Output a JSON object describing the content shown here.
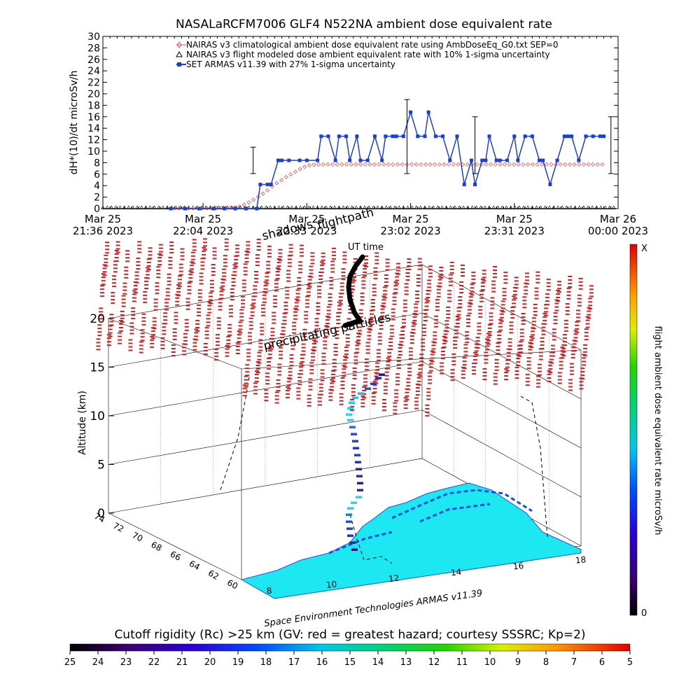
{
  "title": "NASALaRCFM7006  GLF4 N522NA ambient dose equivalent rate",
  "chart_data": [
    {
      "type": "line",
      "ylabel": "dH*(10)/dt microSv/h",
      "ylim": [
        0,
        30
      ],
      "yticks": [
        "0",
        "2",
        "4",
        "6",
        "8",
        "10",
        "12",
        "14",
        "16",
        "18",
        "20",
        "22",
        "24",
        "26",
        "28",
        "30"
      ],
      "xlim_minutes": [
        0,
        144
      ],
      "x_tick_labels": [
        {
          "l1": "Mar 25",
          "l2": "21:36 2023"
        },
        {
          "l1": "Mar 25",
          "l2": "22:04 2023"
        },
        {
          "l1": "Mar 25",
          "l2": "22:33 2023"
        },
        {
          "l1": "Mar 25",
          "l2": "23:02 2023"
        },
        {
          "l1": "Mar 25",
          "l2": "23:31 2023"
        },
        {
          "l1": "Mar 26",
          "l2": "00:00 2023"
        }
      ],
      "legend": [
        "NAIRAS v3 climatological ambient dose equivalent rate using AmbDoseEq_G0.txt SEP=0",
        "NAIRAS v3 flight modeled dose ambient equivalent rate with 10% 1-sigma uncertainty",
        "SET ARMAS v11.39 with 27% 1-sigma uncertainty"
      ],
      "legend_placement": "top",
      "series": [
        {
          "name": "NAIRAS v3 climatological ambient dose equivalent rate using AmbDoseEq_G0.txt SEP=0",
          "marker": "diamond",
          "color": "#e05050",
          "x": [
            20,
            25,
            30,
            35,
            38,
            40,
            42,
            44,
            46,
            48,
            50,
            52,
            54,
            56,
            58,
            60,
            140
          ],
          "y": [
            0.05,
            0.05,
            0.05,
            0.1,
            0.3,
            0.8,
            1.5,
            2.3,
            3.2,
            4.2,
            5.0,
            5.8,
            6.5,
            7.2,
            7.6,
            7.7,
            7.7
          ]
        },
        {
          "name": "NAIRAS v3 flight modeled dose ambient equivalent rate with 10% 1-sigma uncertainty",
          "marker": "triangle",
          "color": "#000000",
          "x": [
            0,
            144
          ],
          "y": [
            0.1,
            0.1
          ]
        },
        {
          "name": "SET ARMAS v11.39 with 27% 1-sigma uncertainty",
          "marker": "square",
          "color": "#1a3fd6",
          "x": [
            19,
            23,
            27,
            31,
            34,
            37,
            40,
            43,
            44,
            46,
            47,
            49,
            50,
            52,
            55,
            57,
            60,
            61,
            63,
            65,
            66,
            68,
            69,
            71,
            72,
            74,
            76,
            78,
            79,
            81,
            82,
            84,
            86,
            88,
            90,
            91,
            93,
            95,
            97,
            99,
            101,
            103,
            104,
            106,
            107,
            108,
            110,
            111,
            113,
            115,
            116,
            118,
            120,
            122,
            123,
            125,
            127,
            129,
            130,
            131,
            133,
            135,
            137,
            139,
            140
          ],
          "y": [
            0,
            0,
            0,
            0,
            0,
            0,
            0,
            0,
            4.2,
            4.2,
            4.2,
            8.4,
            8.4,
            8.4,
            8.4,
            8.4,
            8.4,
            12.6,
            12.6,
            8.4,
            12.6,
            12.6,
            8.4,
            12.6,
            8.4,
            8.4,
            12.6,
            8.4,
            12.6,
            12.6,
            12.6,
            12.6,
            16.8,
            12.6,
            12.6,
            16.8,
            12.6,
            12.6,
            8.4,
            12.6,
            4.2,
            8.4,
            4.2,
            8.4,
            8.4,
            12.6,
            8.4,
            8.4,
            8.4,
            12.6,
            8.4,
            12.6,
            12.6,
            8.4,
            8.4,
            4.2,
            8.4,
            12.6,
            12.6,
            12.6,
            8.4,
            12.6,
            12.6,
            12.6,
            12.6
          ]
        }
      ],
      "error_bars": [
        {
          "x": 42,
          "lo": 6.1,
          "hi": 10.7
        },
        {
          "x": 85,
          "lo": 6.1,
          "hi": 19.0
        },
        {
          "x": 104,
          "lo": 6.1,
          "hi": 16.0
        },
        {
          "x": 142,
          "lo": 6.1,
          "hi": 16.0
        }
      ]
    },
    {
      "type": "scatter",
      "zlabel": "Altitude (km)",
      "zlim": [
        0,
        20
      ],
      "zticks": [
        "0",
        "5",
        "10",
        "15",
        "20"
      ],
      "yticks": [
        "60",
        "62",
        "64",
        "66",
        "68",
        "70",
        "72",
        "74"
      ],
      "xticks": [
        "8",
        "10",
        "12",
        "14",
        "16",
        "18"
      ],
      "annotations": [
        "shadows",
        "flightpath",
        "UT time",
        "precipitating particles"
      ],
      "footer": "Space Environment Technologies ARMAS v11.39",
      "colorbar": {
        "label": "flight ambient dose equivalent rate microSv/h",
        "max_label": "X",
        "min_label": "0"
      }
    }
  ],
  "bottom_colorbar": {
    "title": "Cutoff rigidity (Rc) >25 km (GV: red = greatest hazard; courtesy SSSRC; Kp=2)",
    "ticks": [
      "25",
      "24",
      "23",
      "22",
      "21",
      "20",
      "19",
      "18",
      "17",
      "16",
      "15",
      "14",
      "13",
      "12",
      "11",
      "10",
      "9",
      "8",
      "7",
      "6",
      "5"
    ]
  },
  "colors": {
    "red_markers": "#cc1f1f",
    "land": "#1de8f2",
    "blue_marker": "#1a3fd6"
  }
}
